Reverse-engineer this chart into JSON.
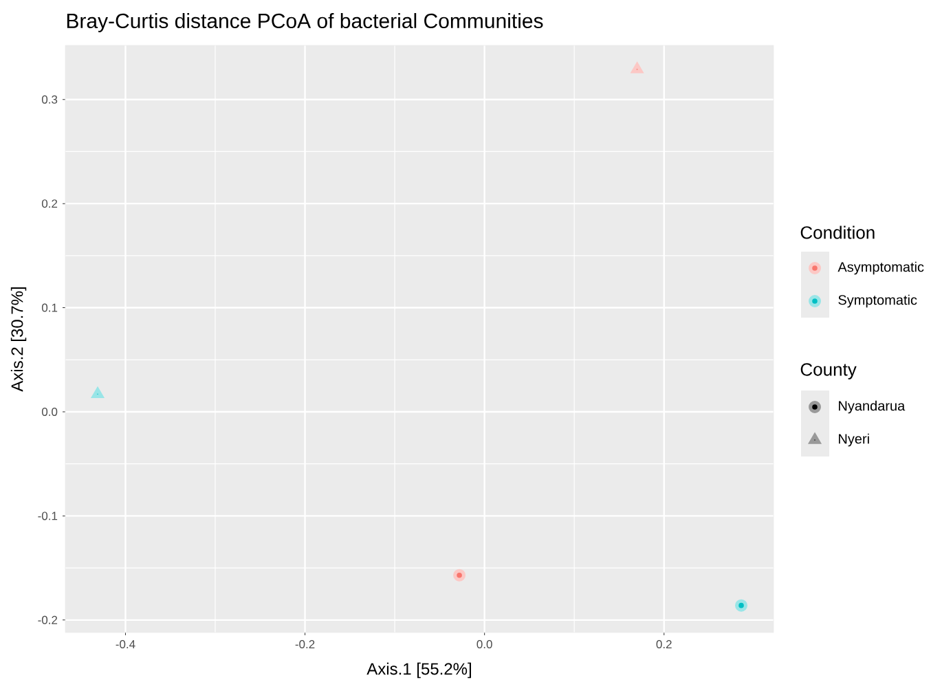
{
  "chart_data": {
    "type": "scatter",
    "title": "Bray-Curtis distance PCoA of bacterial Communities",
    "xlabel": "Axis.1   [55.2%]",
    "ylabel": "Axis.2   [30.7%]",
    "legend_title": [
      "Condition",
      "County"
    ],
    "legend": "right",
    "grid": true,
    "xlim": [
      -0.467,
      0.322
    ],
    "ylim": [
      -0.212,
      0.352
    ],
    "xticks": [
      -0.4,
      -0.2,
      {
        "value": 0,
        "label": "0.0"
      },
      0.2
    ],
    "yticks": [
      -0.2,
      -0.1,
      {
        "value": 0,
        "label": "0.0"
      },
      0.1,
      0.2,
      0.3
    ],
    "series": [
      {
        "name": "Asymptomatic",
        "color": "#f8766d",
        "marker": [
          "triangle",
          "circle"
        ],
        "x": [
          0.17,
          -0.028
        ],
        "values": [
          0.329,
          -0.157
        ]
      },
      {
        "name": "Symptomatic",
        "color": "#00bfc4",
        "marker": [
          "triangle",
          "circle"
        ],
        "x": [
          -0.431,
          0.286
        ],
        "values": [
          0.017,
          -0.186
        ]
      },
      {
        "name": "Nyandarua",
        "color": "#000000",
        "marker": "circle"
      },
      {
        "name": "Nyeri",
        "color": "#000000",
        "marker": "triangle"
      }
    ]
  }
}
